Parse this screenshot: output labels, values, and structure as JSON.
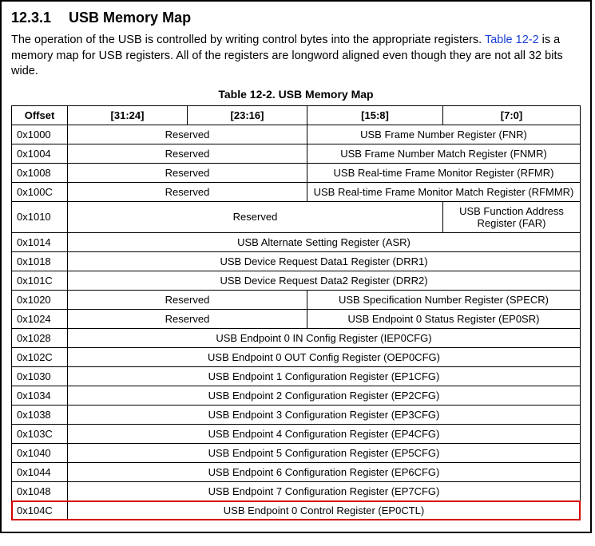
{
  "section_number": "12.3.1",
  "section_title": "USB Memory Map",
  "paragraph_pre": "The operation of the USB is controlled by writing control bytes into the appropriate registers. ",
  "table_xref": "Table 12-2",
  "paragraph_post": " is a memory map for USB registers. All of the registers are longword aligned even though they are not all 32 bits wide.",
  "table_title": "Table 12-2. USB Memory Map",
  "columns": [
    "Offset",
    "[31:24]",
    "[23:16]",
    "[15:8]",
    "[7:0]"
  ],
  "reserved_label": "Reserved",
  "rows": [
    {
      "offset": "0x1000",
      "cells": [
        {
          "span": 2,
          "text_key": "reserved_label"
        },
        {
          "span": 2,
          "text": "USB Frame Number Register (FNR)"
        }
      ]
    },
    {
      "offset": "0x1004",
      "cells": [
        {
          "span": 2,
          "text_key": "reserved_label"
        },
        {
          "span": 2,
          "text": "USB Frame Number Match Register (FNMR)"
        }
      ]
    },
    {
      "offset": "0x1008",
      "cells": [
        {
          "span": 2,
          "text_key": "reserved_label"
        },
        {
          "span": 2,
          "text": "USB Real-time Frame Monitor Register (RFMR)"
        }
      ]
    },
    {
      "offset": "0x100C",
      "cells": [
        {
          "span": 2,
          "text_key": "reserved_label"
        },
        {
          "span": 2,
          "text": "USB Real-time Frame Monitor Match Register (RFMMR)"
        }
      ]
    },
    {
      "offset": "0x1010",
      "cells": [
        {
          "span": 3,
          "text_key": "reserved_label"
        },
        {
          "span": 1,
          "text": "USB Function Address Register (FAR)"
        }
      ]
    },
    {
      "offset": "0x1014",
      "cells": [
        {
          "span": 4,
          "text": "USB Alternate Setting Register (ASR)"
        }
      ]
    },
    {
      "offset": "0x1018",
      "cells": [
        {
          "span": 4,
          "text": "USB Device Request Data1 Register (DRR1)"
        }
      ]
    },
    {
      "offset": "0x101C",
      "cells": [
        {
          "span": 4,
          "text": "USB Device Request Data2 Register (DRR2)"
        }
      ]
    },
    {
      "offset": "0x1020",
      "cells": [
        {
          "span": 2,
          "text_key": "reserved_label"
        },
        {
          "span": 2,
          "text": "USB Specification Number Register (SPECR)"
        }
      ]
    },
    {
      "offset": "0x1024",
      "cells": [
        {
          "span": 2,
          "text_key": "reserved_label"
        },
        {
          "span": 2,
          "text": "USB Endpoint 0 Status Register (EP0SR)"
        }
      ]
    },
    {
      "offset": "0x1028",
      "cells": [
        {
          "span": 4,
          "text": "USB Endpoint 0 IN Config Register (IEP0CFG)"
        }
      ]
    },
    {
      "offset": "0x102C",
      "cells": [
        {
          "span": 4,
          "text": "USB Endpoint 0 OUT Config Register (OEP0CFG)"
        }
      ]
    },
    {
      "offset": "0x1030",
      "cells": [
        {
          "span": 4,
          "text": "USB Endpoint 1 Configuration Register (EP1CFG)"
        }
      ]
    },
    {
      "offset": "0x1034",
      "cells": [
        {
          "span": 4,
          "text": "USB Endpoint 2 Configuration Register (EP2CFG)"
        }
      ]
    },
    {
      "offset": "0x1038",
      "cells": [
        {
          "span": 4,
          "text": "USB Endpoint 3 Configuration Register (EP3CFG)"
        }
      ]
    },
    {
      "offset": "0x103C",
      "cells": [
        {
          "span": 4,
          "text": "USB Endpoint 4 Configuration Register (EP4CFG)"
        }
      ]
    },
    {
      "offset": "0x1040",
      "cells": [
        {
          "span": 4,
          "text": "USB Endpoint 5 Configuration Register (EP5CFG)"
        }
      ]
    },
    {
      "offset": "0x1044",
      "cells": [
        {
          "span": 4,
          "text": "USB Endpoint 6 Configuration Register (EP6CFG)"
        }
      ]
    },
    {
      "offset": "0x1048",
      "cells": [
        {
          "span": 4,
          "text": "USB Endpoint 7 Configuration Register (EP7CFG)"
        }
      ]
    },
    {
      "offset": "0x104C",
      "highlight": true,
      "cells": [
        {
          "span": 4,
          "text": "USB Endpoint 0 Control Register (EP0CTL)"
        }
      ]
    }
  ],
  "highlight_color": "#d40000",
  "link_color": "#1a3fd6"
}
